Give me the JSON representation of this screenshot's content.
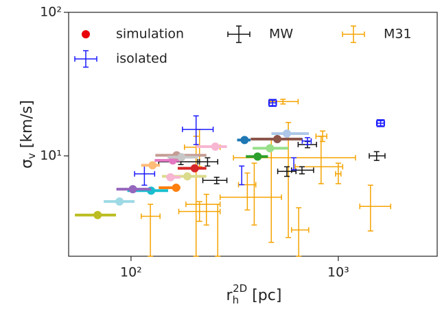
{
  "chart_data": {
    "type": "scatter",
    "xlabel": {
      "symbol": "r",
      "sub": "h",
      "sup": "2D",
      "unit": " [pc]"
    },
    "ylabel": {
      "symbol": "σ",
      "sub": "v",
      "unit": " [km/s]"
    },
    "xscale": "log",
    "yscale": "log",
    "xlim": [
      50,
      3000
    ],
    "ylim": [
      2,
      100
    ],
    "xticks": [
      {
        "value": 100,
        "label": "10²"
      },
      {
        "value": 1000,
        "label": "10³"
      }
    ],
    "yticks": [
      {
        "value": 10,
        "label": "10¹"
      },
      {
        "value": 100,
        "label": "10²"
      }
    ],
    "series": [
      {
        "name": "simulation",
        "color": "#e8000b",
        "marker": "dot",
        "points": [
          {
            "x": 69,
            "y": 3.87,
            "xmin": 53.6,
            "xmax": 84.6,
            "color": "#bcbd22"
          },
          {
            "x": 88,
            "y": 4.81,
            "xmin": 73.8,
            "xmax": 104,
            "color": "#9edae5"
          },
          {
            "x": 125,
            "y": 5.73,
            "xmin": 96,
            "xmax": 151,
            "color": "#17becf"
          },
          {
            "x": 165,
            "y": 6.0,
            "xmin": 136,
            "xmax": 173,
            "color": "#ff7f0e"
          },
          {
            "x": 102,
            "y": 5.86,
            "xmin": 85,
            "xmax": 125,
            "color": "#9467bd"
          },
          {
            "x": 187,
            "y": 7.2,
            "xmin": 141,
            "xmax": 231,
            "color": "#dbdb8d"
          },
          {
            "x": 155,
            "y": 7.1,
            "xmin": 148,
            "xmax": 173,
            "color": "#f7b6d2"
          },
          {
            "x": 203,
            "y": 8.2,
            "xmin": 168,
            "xmax": 231,
            "color": "#d62728"
          },
          {
            "x": 127,
            "y": 8.6,
            "xmin": 112,
            "xmax": 138,
            "color": "#ffbb78"
          },
          {
            "x": 159,
            "y": 9.3,
            "xmin": 130,
            "xmax": 173,
            "color": "#e377c2"
          },
          {
            "x": 166,
            "y": 10.1,
            "xmin": 131,
            "xmax": 231,
            "color": "#c49c94"
          },
          {
            "x": 175,
            "y": 9.8,
            "xmin": 150,
            "xmax": 210,
            "color": "#c7c7c7"
          },
          {
            "x": 255,
            "y": 11.6,
            "xmin": 206,
            "xmax": 290,
            "color": "#f7b6d2"
          },
          {
            "x": 353,
            "y": 12.9,
            "xmin": 325,
            "xmax": 377,
            "color": "#1f77b4"
          },
          {
            "x": 408,
            "y": 9.9,
            "xmin": 358,
            "xmax": 458,
            "color": "#2ca02c"
          },
          {
            "x": 468,
            "y": 11.3,
            "xmin": 386,
            "xmax": 574,
            "color": "#98df8a"
          },
          {
            "x": 508,
            "y": 13.1,
            "xmin": 378,
            "xmax": 669,
            "color": "#8c564b"
          },
          {
            "x": 565,
            "y": 14.3,
            "xmin": 476,
            "xmax": 721,
            "color": "#aec7e8"
          }
        ]
      },
      {
        "name": "isolated",
        "color": "#1a1aff",
        "marker": "errorbar",
        "points": [
          {
            "x": 206,
            "y": 15.3,
            "xmin": 177,
            "xmax": 249,
            "ymin": 12.0,
            "ymax": 19.0
          },
          {
            "x": 116,
            "y": 7.5,
            "xmin": 104,
            "xmax": 130,
            "ymin": 6.25,
            "ymax": 8.6
          },
          {
            "x": 482,
            "y": 23.4,
            "xmin": 462,
            "xmax": 503,
            "ymin": 22.4,
            "ymax": 24.4,
            "box": true
          },
          {
            "x": 1600,
            "y": 16.9,
            "xmin": 1530,
            "xmax": 1670,
            "ymin": 16.2,
            "ymax": 17.6,
            "box": true
          },
          {
            "x": 342,
            "y": 7.3,
            "ymin": 6.3,
            "ymax": 8.5
          },
          {
            "x": 610,
            "y": 8.8,
            "ymin": 8.0,
            "ymax": 9.7
          },
          {
            "x": 710,
            "y": 12.7,
            "xmin": 670,
            "xmax": 740,
            "ymin": 12.0,
            "ymax": 13.4
          }
        ]
      },
      {
        "name": "MW",
        "color": "#111111",
        "marker": "errorbar",
        "points": [
          {
            "x": 234,
            "y": 9.1,
            "xmin": 210,
            "xmax": 262,
            "ymin": 8.5,
            "ymax": 9.7
          },
          {
            "x": 259,
            "y": 6.75,
            "xmin": 222,
            "xmax": 290,
            "ymin": 6.4,
            "ymax": 7.1
          },
          {
            "x": 174,
            "y": 9.1,
            "xmin": 136,
            "xmax": 214,
            "ymin": 8.7,
            "ymax": 9.5
          },
          {
            "x": 710,
            "y": 12.0,
            "xmin": 640,
            "xmax": 785,
            "ymin": 11.4,
            "ymax": 12.6
          },
          {
            "x": 668,
            "y": 7.95,
            "xmin": 595,
            "xmax": 760,
            "ymin": 7.5,
            "ymax": 8.4
          },
          {
            "x": 565,
            "y": 7.8,
            "xmin": 510,
            "xmax": 625,
            "ymin": 7.2,
            "ymax": 8.4
          },
          {
            "x": 1531,
            "y": 10.0,
            "xmin": 1410,
            "xmax": 1680,
            "ymin": 9.3,
            "ymax": 10.7
          }
        ]
      },
      {
        "name": "M31",
        "color": "#f5a300",
        "marker": "errorbar",
        "points": [
          {
            "x": 541,
            "y": 23.9,
            "xmin": 466,
            "xmax": 640,
            "ymin": 23.0,
            "ymax": 24.8
          },
          {
            "x": 214,
            "y": 11.5,
            "xmin": 181,
            "xmax": 269,
            "ymin": 8.4,
            "ymax": 15.3
          },
          {
            "x": 231,
            "y": 4.6,
            "xmin": 184,
            "xmax": 269,
            "ymin": 3.3,
            "ymax": 5.4
          },
          {
            "x": 262,
            "ymin": 2,
            "y": 2.9,
            "ymax": 4.6
          },
          {
            "x": 124,
            "y": 3.8,
            "xmin": 112,
            "xmax": 138,
            "ymin": 2,
            "ymax": 4.6
          },
          {
            "x": 214,
            "y": 4.1,
            "xmin": 170,
            "xmax": 269,
            "ymin": 3.5,
            "ymax": 4.8
          },
          {
            "x": 393,
            "y": 5.15,
            "xmin": 269,
            "xmax": 532,
            "ymin": 3.3,
            "ymax": 8.9
          },
          {
            "x": 475,
            "y": 7.3,
            "ymin": 2.5,
            "ymax": 13.0
          },
          {
            "x": 826,
            "y": 8.4,
            "xmin": 620,
            "xmax": 1050,
            "ymin": 6.4,
            "ymax": 13.7
          },
          {
            "x": 1430,
            "y": 4.45,
            "xmin": 1270,
            "xmax": 1790,
            "ymin": 3.0,
            "ymax": 6.25
          },
          {
            "x": 1000,
            "y": 7.5,
            "xmin": 970,
            "xmax": 1030,
            "ymin": 6.4,
            "ymax": 8.9
          },
          {
            "x": 644,
            "y": 3.05,
            "xmin": 595,
            "xmax": 720,
            "ymin": 2,
            "ymax": 4.35
          },
          {
            "x": 574,
            "y": 9.7,
            "xmin": 312,
            "xmax": 1210,
            "ymin": 2.7,
            "ymax": 17.1
          },
          {
            "x": 840,
            "y": 13.7,
            "xmin": 780,
            "xmax": 880,
            "ymin": 12.6,
            "ymax": 14.9
          },
          {
            "x": 206,
            "y": 9.9,
            "ymin": 2,
            "ymax": 13.7
          },
          {
            "x": 364,
            "y": 6.3,
            "xmin": 330,
            "xmax": 400,
            "ymin": 4.2,
            "ymax": 7.6
          }
        ]
      }
    ]
  }
}
